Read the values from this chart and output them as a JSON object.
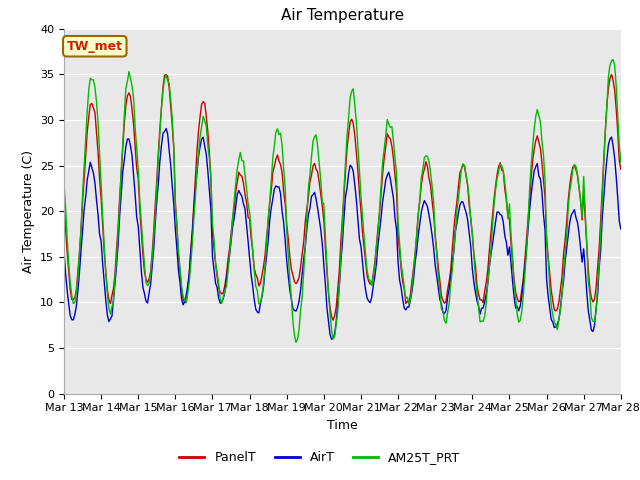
{
  "title": "Air Temperature",
  "ylabel": "Air Temperature (C)",
  "xlabel": "Time",
  "ylim": [
    0,
    40
  ],
  "yticks": [
    0,
    5,
    10,
    15,
    20,
    25,
    30,
    35,
    40
  ],
  "station_label": "TW_met",
  "legend_entries": [
    "PanelT",
    "AirT",
    "AM25T_PRT"
  ],
  "line_colors": [
    "#cc0000",
    "#0000cc",
    "#00bb00"
  ],
  "fig_bg_color": "#ffffff",
  "plot_bg_color": "#e8e8e8",
  "title_fontsize": 11,
  "label_fontsize": 9,
  "tick_fontsize": 8,
  "legend_fontsize": 9,
  "linewidth": 1.0,
  "day_maxes_panel": [
    32,
    33,
    35,
    32,
    24,
    26,
    25,
    30,
    28,
    25,
    25,
    25,
    28,
    25,
    35,
    37
  ],
  "day_mins_panel": [
    10,
    10,
    12,
    10,
    11,
    12,
    12,
    8,
    12,
    10,
    10,
    10,
    10,
    9,
    10,
    12
  ],
  "day_maxes_air": [
    25,
    28,
    29,
    28,
    22,
    23,
    22,
    25,
    24,
    21,
    21,
    20,
    25,
    20,
    28,
    28
  ],
  "day_mins_air": [
    8,
    8,
    10,
    10,
    10,
    9,
    9,
    6,
    10,
    9,
    9,
    9,
    9,
    7,
    7,
    11
  ],
  "day_maxes_am25": [
    35,
    35,
    35,
    30,
    26,
    29,
    28,
    33,
    30,
    26,
    25,
    25,
    31,
    25,
    37,
    37
  ],
  "day_mins_am25": [
    10,
    9,
    12,
    10,
    10,
    10,
    6,
    6,
    12,
    10,
    8,
    8,
    8,
    7,
    8,
    12
  ]
}
